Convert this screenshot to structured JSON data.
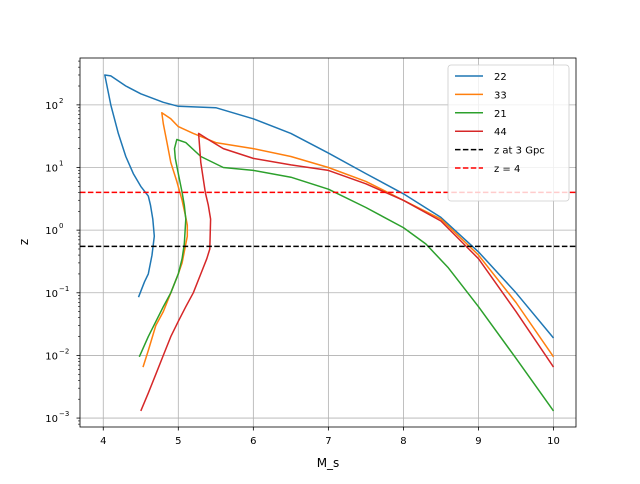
{
  "chart_data": {
    "type": "line",
    "title": "",
    "xlabel": "M_s",
    "ylabel": "z",
    "xlim": [
      3.69,
      10.3
    ],
    "ylim": [
      0.00072,
      560
    ],
    "yscale": "log",
    "grid": true,
    "legend_placement": "top-right",
    "xticks": [
      4,
      5,
      6,
      7,
      8,
      9,
      10
    ],
    "xtick_labels": [
      "4",
      "5",
      "6",
      "7",
      "8",
      "9",
      "10"
    ],
    "yticks": [
      -3,
      -2,
      -1,
      0,
      1,
      2
    ],
    "ytick_labels": [
      "10",
      "10",
      "10",
      "10",
      "10",
      "10"
    ],
    "ytick_exponents": [
      "−3",
      "−2",
      "−1",
      "0",
      "1",
      "2"
    ],
    "series": [
      {
        "name": "22",
        "color": "#1f77b4",
        "x": [
          4.47,
          4.55,
          4.6,
          4.65,
          4.68,
          4.66,
          4.63,
          4.6,
          4.5,
          4.4,
          4.3,
          4.2,
          4.1,
          4.02,
          4.1,
          4.3,
          4.5,
          4.8,
          5.0,
          5.5,
          6.0,
          6.5,
          7.0,
          7.5,
          8.0,
          8.5,
          9.0,
          9.5,
          10.0
        ],
        "y": [
          0.085,
          0.15,
          0.2,
          0.4,
          0.8,
          1.5,
          2.5,
          3.5,
          5,
          8,
          15,
          35,
          100,
          300,
          290,
          200,
          150,
          110,
          95,
          90,
          60,
          35,
          17,
          8,
          3.8,
          1.6,
          0.45,
          0.1,
          0.019
        ]
      },
      {
        "name": "33",
        "color": "#ff7f0e",
        "x": [
          4.53,
          4.6,
          4.7,
          4.8,
          4.9,
          5.0,
          5.05,
          5.12,
          5.12,
          5.1,
          5.05,
          4.98,
          4.9,
          4.85,
          4.8,
          4.78,
          4.9,
          5.0,
          5.2,
          5.5,
          6.0,
          6.5,
          7.0,
          7.5,
          8.0,
          8.5,
          9.0,
          9.5,
          10.0
        ],
        "y": [
          0.0065,
          0.012,
          0.03,
          0.05,
          0.1,
          0.2,
          0.3,
          0.8,
          1.2,
          1.6,
          3,
          6,
          12,
          25,
          50,
          75,
          60,
          45,
          35,
          25,
          20,
          15,
          10,
          6,
          3,
          1.5,
          0.4,
          0.07,
          0.0095
        ]
      },
      {
        "name": "21",
        "color": "#2ca02c",
        "x": [
          4.48,
          4.6,
          4.8,
          4.9,
          5.0,
          5.05,
          5.08,
          5.1,
          5.08,
          5.05,
          5.0,
          4.96,
          4.95,
          4.98,
          5.1,
          5.3,
          5.6,
          6.0,
          6.5,
          7.0,
          7.5,
          8.0,
          8.3,
          8.6,
          9.0,
          9.5,
          10.0
        ],
        "y": [
          0.0095,
          0.02,
          0.06,
          0.1,
          0.2,
          0.35,
          0.6,
          1.5,
          2.5,
          4,
          8,
          14,
          20,
          28,
          25,
          15,
          10,
          9,
          7,
          4.5,
          2.3,
          1.1,
          0.6,
          0.25,
          0.06,
          0.009,
          0.0013
        ]
      },
      {
        "name": "44",
        "color": "#d62728",
        "x": [
          4.5,
          4.6,
          4.7,
          4.8,
          4.9,
          5.0,
          5.1,
          5.2,
          5.3,
          5.38,
          5.42,
          5.43,
          5.4,
          5.36,
          5.3,
          5.27,
          5.4,
          5.6,
          6.0,
          6.5,
          7.0,
          7.5,
          8.0,
          8.5,
          9.0,
          9.5,
          10.0
        ],
        "y": [
          0.0013,
          0.0025,
          0.005,
          0.01,
          0.02,
          0.035,
          0.06,
          0.1,
          0.2,
          0.35,
          0.5,
          1.5,
          2.5,
          4,
          12,
          35,
          28,
          20,
          14,
          11,
          9,
          5.5,
          3,
          1.4,
          0.35,
          0.05,
          0.0065
        ]
      }
    ],
    "hlines": [
      {
        "name": "z at 3 Gpc",
        "value": 0.55,
        "color": "#000000",
        "style": "dashed"
      },
      {
        "name": "z = 4",
        "value": 4,
        "color": "#ff0000",
        "style": "dashed"
      }
    ]
  }
}
